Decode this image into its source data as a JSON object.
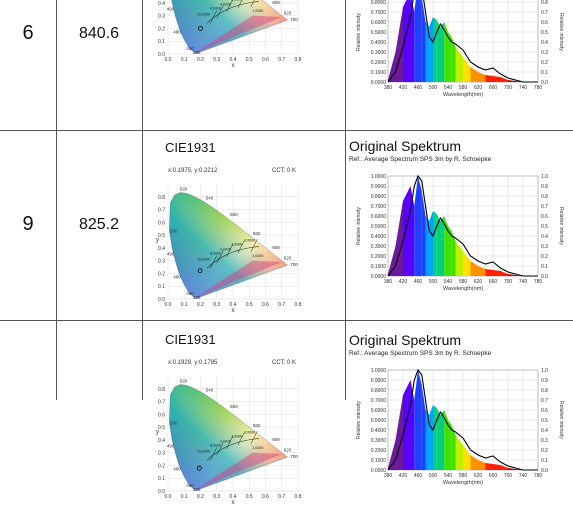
{
  "rows": [
    {
      "index": "6",
      "value": "840.6",
      "cie": {
        "title": "",
        "xy": "",
        "cct": ""
      },
      "spectrum": {
        "title": "",
        "ref": ""
      }
    },
    {
      "index": "9",
      "value": "825.2",
      "cie": {
        "title": "CIE1931",
        "xy": "x:0.1975, y:0.2212",
        "cct": "CCT: 0 K"
      },
      "spectrum": {
        "title": "Original Spektrum",
        "ref": "Ref.: Average Spectrum SPS 3m by R. Schoepke"
      }
    },
    {
      "index": "",
      "value": "",
      "cie": {
        "title": "CIE1931",
        "xy": "x:0.1929, y:0.1785",
        "cct": "CCT: 0 K"
      },
      "spectrum": {
        "title": "Original Spektrum",
        "ref": "Ref.: Average Spectrum SPS 3m by R. Schoepke"
      }
    }
  ],
  "cie_axis": {
    "x_ticks": [
      "0.0",
      "0.1",
      "0.2",
      "0.3",
      "0.4",
      "0.5",
      "0.6",
      "0.7",
      "0.8"
    ],
    "y_ticks": [
      "0.0",
      "0.1",
      "0.2",
      "0.3",
      "0.4",
      "0.5",
      "0.6",
      "0.7",
      "0.8"
    ],
    "x_label": "x",
    "y_label": "y",
    "wavelength_labels": [
      "520",
      "540",
      "560",
      "580",
      "600",
      "620",
      "700",
      "500",
      "490",
      "480",
      "460",
      "380"
    ],
    "cct_labels": [
      "6,000K",
      "4,000K",
      "3,000K",
      "2,000K",
      "10,000K",
      "1,000K"
    ]
  },
  "spectrum_axis": {
    "left_ticks": [
      "0.0000",
      "0.1000",
      "0.2000",
      "0.3000",
      "0.4000",
      "0.5000",
      "0.6000",
      "0.7000",
      "0.8000",
      "0.9000",
      "1.0000"
    ],
    "right_ticks": [
      "0.0",
      "0.1",
      "0.2",
      "0.3",
      "0.4",
      "0.5",
      "0.6",
      "0.7",
      "0.8",
      "0.9",
      "1.0"
    ],
    "x_ticks": [
      "380",
      "420",
      "460",
      "500",
      "540",
      "580",
      "620",
      "660",
      "700",
      "740",
      "780"
    ],
    "x_label": "Wavelength(nm)",
    "left_label": "Relative intensity",
    "right_label": "Relative intensity"
  },
  "chart_data": [
    {
      "type": "area",
      "title": "Original Spektrum",
      "xlabel": "Wavelength(nm)",
      "ylabel": "Relative intensity",
      "xlim": [
        380,
        780
      ],
      "ylim": [
        0,
        1
      ],
      "x": [
        380,
        400,
        420,
        440,
        450,
        460,
        470,
        480,
        490,
        500,
        510,
        520,
        530,
        540,
        550,
        560,
        580,
        600,
        620,
        640,
        660,
        680,
        700,
        740,
        780
      ],
      "series": [
        {
          "name": "",
          "values": [
            0.02,
            0.3,
            0.75,
            0.9,
            0.7,
            1.0,
            0.85,
            0.6,
            0.55,
            0.65,
            0.62,
            0.55,
            0.6,
            0.5,
            0.45,
            0.35,
            0.25,
            0.15,
            0.1,
            0.07,
            0.06,
            0.05,
            0.02,
            0.0,
            0.0
          ]
        },
        {
          "name": "",
          "values": [
            0.0,
            0.1,
            0.35,
            0.65,
            0.9,
            1.0,
            0.95,
            0.7,
            0.45,
            0.4,
            0.5,
            0.58,
            0.52,
            0.45,
            0.4,
            0.38,
            0.32,
            0.2,
            0.15,
            0.12,
            0.14,
            0.08,
            0.04,
            0.0,
            0.0
          ]
        }
      ]
    }
  ]
}
